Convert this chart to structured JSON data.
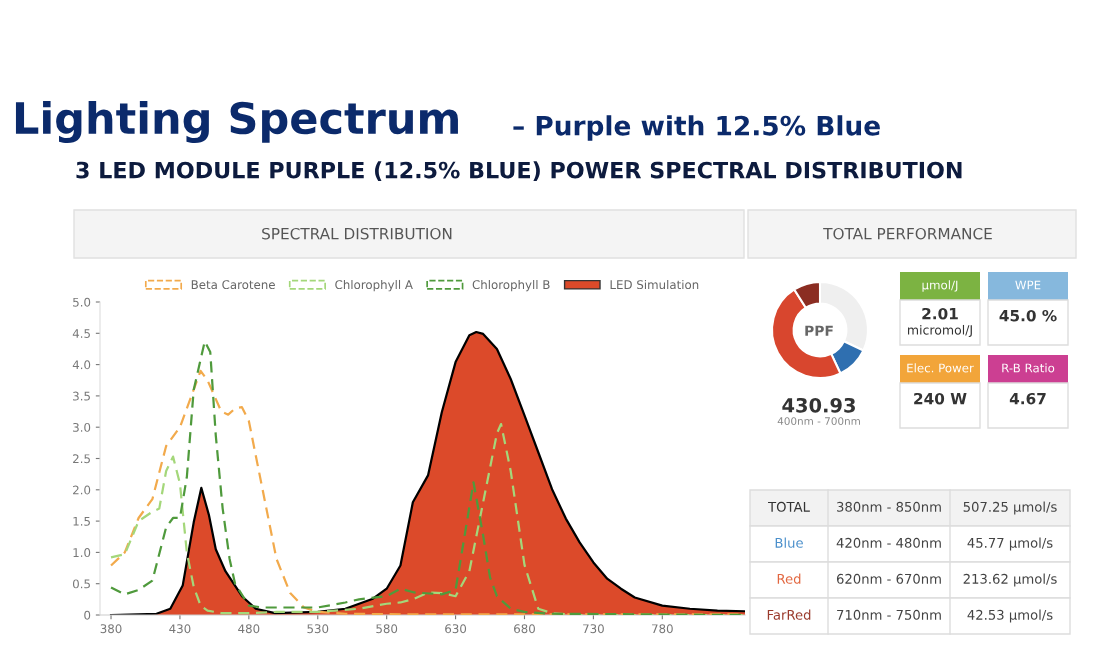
{
  "chart_data": [
    {
      "type": "other",
      "title": "Lighting Spectrum",
      "subtitle": "– Purple with 12.5% Blue",
      "annotations": [
        "3 LED MODULE PURPLE (12.5% BLUE) POWER SPECTRAL DISTRIBUTION"
      ]
    },
    {
      "type": "line",
      "title": "SPECTRAL DISTRIBUTION",
      "xlim": [
        372,
        840
      ],
      "xticks": [
        380,
        430,
        480,
        530,
        580,
        630,
        680,
        730,
        780
      ],
      "ylim": [
        0,
        5
      ],
      "yticks": [
        0,
        {
          "value": 0.5,
          "label": "0.5"
        },
        {
          "value": 1,
          "label": "1.0"
        },
        {
          "value": 1.5,
          "label": "1.5"
        },
        {
          "value": 2,
          "label": "2.0"
        },
        {
          "value": 2.5,
          "label": "2.5"
        },
        {
          "value": 3,
          "label": "3.0"
        },
        {
          "value": 3.5,
          "label": "3.5"
        },
        {
          "value": 4,
          "label": "4.0"
        },
        {
          "value": 4.5,
          "label": "4.5"
        },
        {
          "value": 5,
          "label": "5.0"
        }
      ],
      "grid": false,
      "legend": "top",
      "marker": "none",
      "series": [
        {
          "name": "Beta Carotene",
          "color": "#f2aa4c",
          "line_style": "dashed",
          "x": [
            380,
            390,
            400,
            410,
            420,
            430,
            440,
            445,
            450,
            460,
            465,
            470,
            475,
            480,
            490,
            500,
            510,
            520,
            530,
            550,
            600,
            700,
            840
          ],
          "values": [
            0.79,
            1.0,
            1.55,
            1.85,
            2.7,
            3.0,
            3.6,
            3.9,
            3.75,
            3.25,
            3.2,
            3.3,
            3.32,
            3.1,
            2.0,
            0.9,
            0.35,
            0.12,
            0.05,
            0.02,
            0.01,
            0.01,
            0.01
          ]
        },
        {
          "name": "Chlorophyll A",
          "color": "#a4d77a",
          "line_style": "dashed",
          "x": [
            380,
            390,
            400,
            410,
            415,
            420,
            425,
            430,
            435,
            440,
            445,
            450,
            460,
            480,
            500,
            530,
            560,
            580,
            590,
            600,
            610,
            620,
            630,
            640,
            650,
            660,
            663,
            670,
            680,
            690,
            700,
            720,
            840
          ],
          "values": [
            0.92,
            0.97,
            1.5,
            1.65,
            1.7,
            2.3,
            2.53,
            2.1,
            1.0,
            0.45,
            0.15,
            0.07,
            0.03,
            0.03,
            0.05,
            0.05,
            0.1,
            0.18,
            0.2,
            0.26,
            0.36,
            0.35,
            0.3,
            0.7,
            1.8,
            2.9,
            3.05,
            2.3,
            0.8,
            0.1,
            0.03,
            0.0,
            0.0
          ]
        },
        {
          "name": "Chlorophyll B",
          "color": "#4f9a3c",
          "line_style": "dashed",
          "x": [
            380,
            390,
            400,
            410,
            420,
            425,
            430,
            435,
            440,
            448,
            452,
            456,
            461,
            466,
            470,
            480,
            490,
            530,
            550,
            560,
            580,
            590,
            600,
            620,
            630,
            643,
            650,
            655,
            660,
            670,
            680,
            700,
            840
          ],
          "values": [
            0.44,
            0.33,
            0.4,
            0.55,
            1.4,
            1.55,
            1.55,
            2.2,
            3.6,
            4.37,
            4.2,
            2.87,
            1.7,
            0.9,
            0.5,
            0.15,
            0.12,
            0.12,
            0.2,
            0.25,
            0.3,
            0.42,
            0.36,
            0.33,
            0.4,
            2.12,
            1.27,
            0.6,
            0.3,
            0.1,
            0.05,
            0.02,
            0.0
          ]
        },
        {
          "name": "LED Simulation",
          "type": "area",
          "color": "#dc4a2a",
          "x": [
            380,
            413,
            423,
            432,
            440,
            445.5,
            451,
            456,
            463,
            475,
            485,
            499,
            530,
            550,
            570,
            580,
            590,
            599,
            610,
            620,
            630,
            640,
            645,
            650,
            660,
            670,
            680,
            690,
            700,
            710,
            720,
            730,
            740,
            750,
            760,
            780,
            800,
            820,
            840
          ],
          "values": [
            0.0,
            0.02,
            0.1,
            0.47,
            1.48,
            2.03,
            1.6,
            1.05,
            0.7,
            0.3,
            0.1,
            0.03,
            0.05,
            0.1,
            0.26,
            0.42,
            0.79,
            1.8,
            2.23,
            3.24,
            4.04,
            4.47,
            4.52,
            4.49,
            4.25,
            3.77,
            3.19,
            2.6,
            2.01,
            1.54,
            1.16,
            0.84,
            0.58,
            0.42,
            0.28,
            0.15,
            0.1,
            0.07,
            0.06
          ]
        }
      ]
    },
    {
      "type": "donut",
      "title": "TOTAL PERFORMANCE",
      "categories": [
        null,
        null,
        null,
        null
      ],
      "values": [
        32,
        11,
        48,
        9
      ],
      "colors": [
        "#efefef",
        "#2f6fb0",
        "#d8462e",
        "#8b2d22"
      ],
      "annotations": [
        "PPF",
        "430.93",
        "400nm - 700nm"
      ]
    },
    {
      "type": "other",
      "annotations": [
        "µmol/J",
        "2.01",
        "micromol/J",
        "WPE",
        "45.0 %",
        "Elec. Power",
        "240 W",
        "R-B Ratio",
        "4.67"
      ],
      "colors": [
        "#7cb342",
        "#86b8dd",
        "#f2a53a",
        "#cc3f92"
      ]
    },
    {
      "type": "other",
      "annotations": [
        "TOTAL",
        "380nm - 850nm",
        "507.25 µmol/s",
        "Blue",
        "420nm - 480nm",
        "45.77 µmol/s",
        "Red",
        "620nm - 670nm",
        "213.62 µmol/s",
        "FarRed",
        "710nm - 750nm",
        "42.53 µmol/s"
      ],
      "colors": [
        "#333333",
        "#4a8fcb",
        "#e2663f",
        "#9a3a2c"
      ]
    }
  ]
}
